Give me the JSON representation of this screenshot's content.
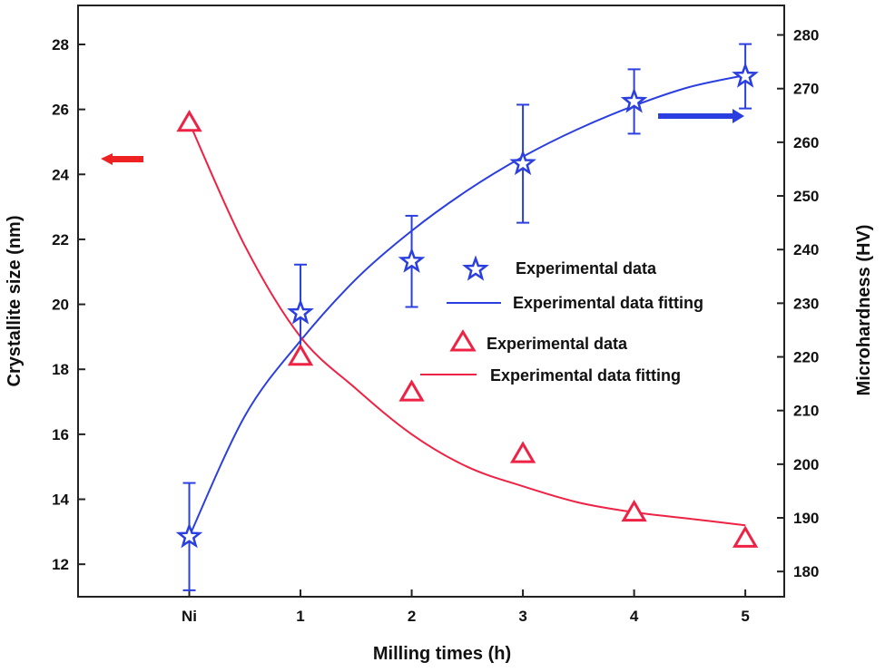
{
  "chart_data": {
    "type": "line",
    "xlabel": "Milling times (h)",
    "x_categories": [
      "Ni",
      "1",
      "2",
      "3",
      "4",
      "5"
    ],
    "x_values": [
      0,
      1,
      2,
      3,
      4,
      5
    ],
    "xlim": [
      -1.0,
      5.35
    ],
    "left_axis": {
      "label": "Crystallite size (nm)",
      "ylim": [
        11.0,
        29.2
      ],
      "ticks": [
        12,
        14,
        16,
        18,
        20,
        22,
        24,
        26,
        28
      ],
      "arrow_color": "#ee2222"
    },
    "right_axis": {
      "label": "Microhardness (HV)",
      "ylim": [
        175.3,
        285.5
      ],
      "ticks": [
        180,
        190,
        200,
        210,
        220,
        230,
        240,
        250,
        260,
        270,
        280
      ],
      "arrow_color": "#2b3fe0"
    },
    "series": [
      {
        "name": "Experimental data",
        "axis": "right",
        "marker": "star",
        "color": "#2b3fe0",
        "x": [
          0,
          1,
          2,
          3,
          4,
          5
        ],
        "y": [
          186.5,
          228.2,
          237.8,
          256.0,
          267.6,
          272.3
        ],
        "err": [
          10.0,
          9.0,
          8.5,
          11.0,
          6.0,
          6.0
        ]
      },
      {
        "name": "Experimental data fitting",
        "axis": "right",
        "marker": "line",
        "color": "#2b3fe0",
        "x": [
          0,
          0.5,
          1,
          1.5,
          2,
          2.5,
          3,
          3.5,
          4,
          4.5,
          5
        ],
        "y": [
          186.5,
          209.0,
          223.0,
          234.5,
          243.5,
          251.0,
          257.3,
          262.5,
          266.8,
          270.3,
          272.5
        ]
      },
      {
        "name": "Experimental data",
        "axis": "left",
        "marker": "triangle",
        "color": "#ee2244",
        "x": [
          0,
          1,
          2,
          3,
          4,
          5
        ],
        "y": [
          25.6,
          18.4,
          17.3,
          15.4,
          13.6,
          12.8
        ]
      },
      {
        "name": "Experimental data fitting",
        "axis": "left",
        "marker": "line",
        "color": "#ee2244",
        "x": [
          0,
          0.5,
          1,
          1.5,
          2,
          2.5,
          3,
          3.5,
          4,
          4.5,
          5
        ],
        "y": [
          25.6,
          21.8,
          19.0,
          17.4,
          16.0,
          15.0,
          14.4,
          13.9,
          13.6,
          13.4,
          13.2
        ]
      }
    ],
    "legend_position": "center-right"
  }
}
